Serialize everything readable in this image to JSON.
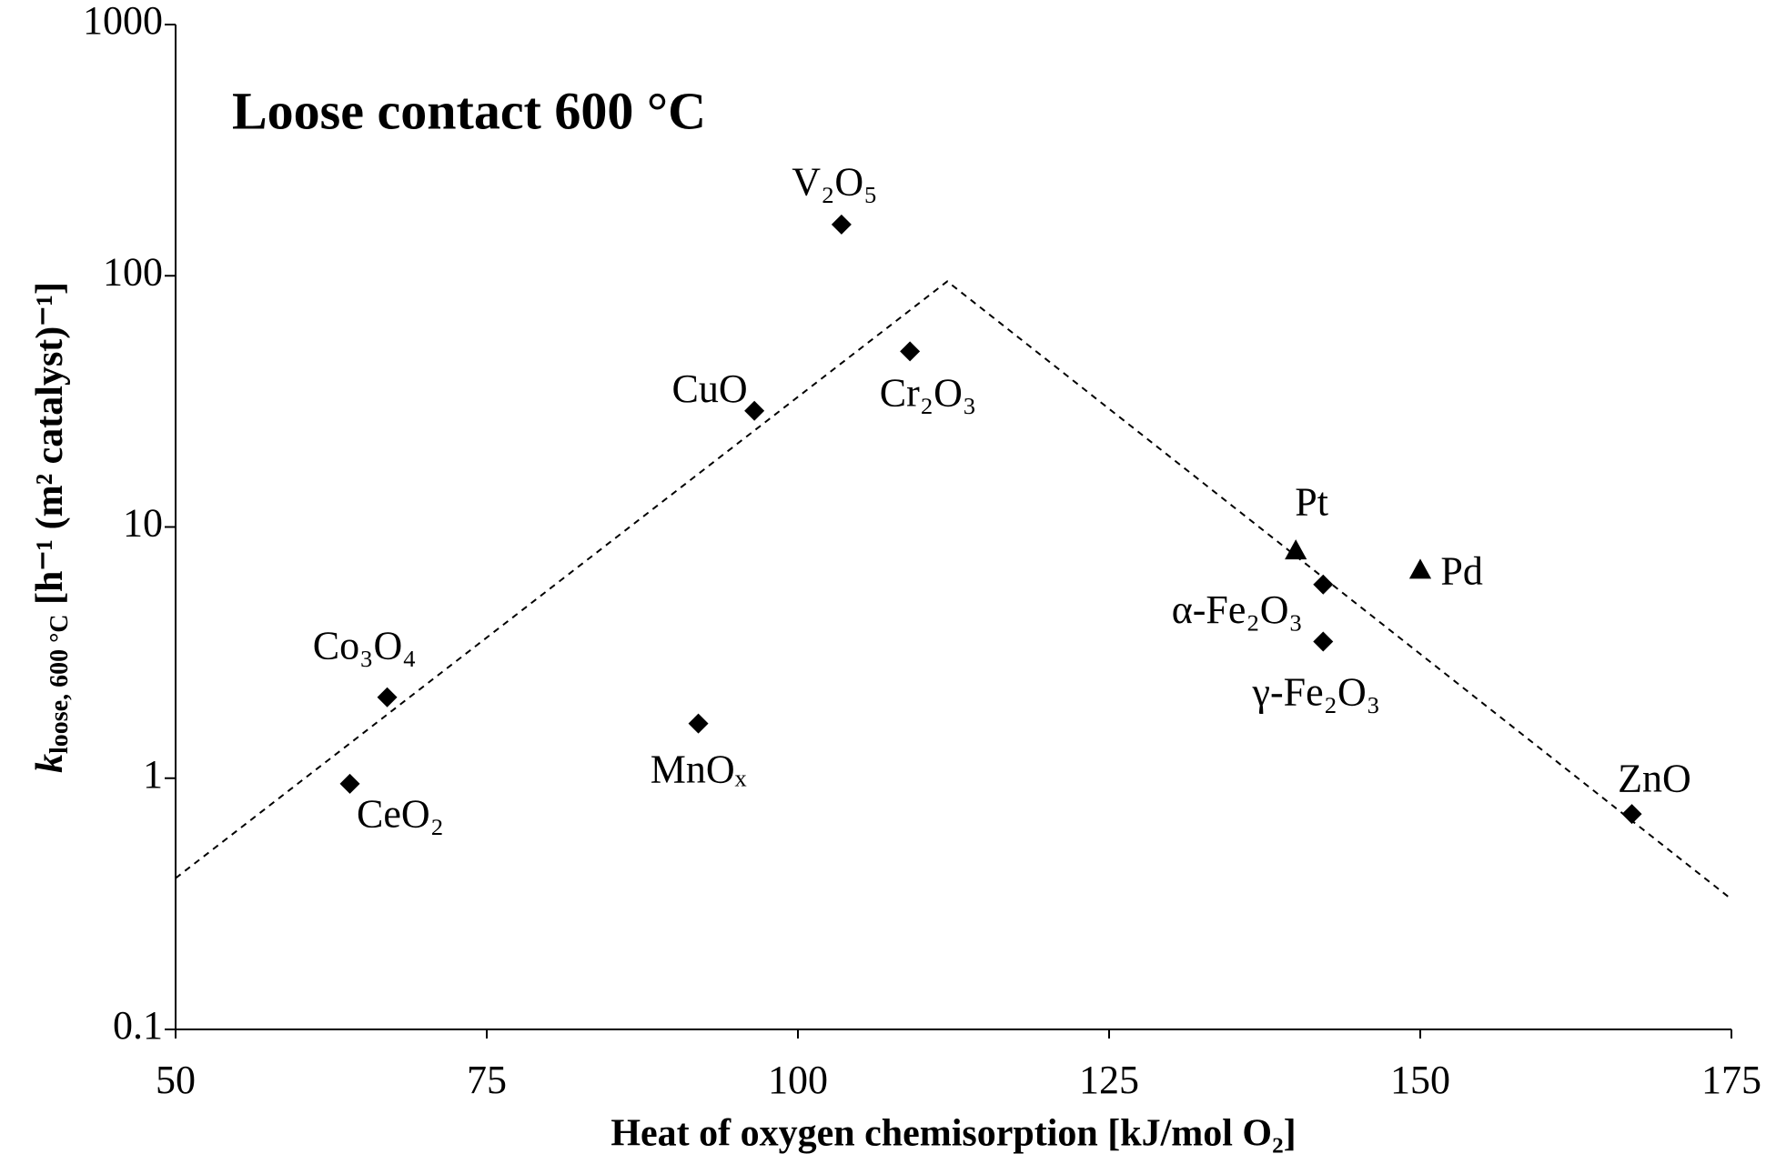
{
  "chart_data": {
    "type": "scatter",
    "title": "Loose contact 600 °C",
    "x_label": "Heat of oxygen chemisorption [kJ/mol O₂]",
    "y_label": {
      "symbol": "k",
      "subscript": "loose, 600 °C",
      "unit": " [h⁻¹ (m² catalyst)⁻¹]"
    },
    "xlim": [
      50,
      175
    ],
    "xticks": [
      50,
      75,
      100,
      125,
      150,
      175
    ],
    "ylim": [
      0.1,
      1000
    ],
    "yticks": [
      0.1,
      1,
      10,
      100,
      1000
    ],
    "log_y": true,
    "series": [
      {
        "marker": "diamond",
        "color": "#000000",
        "x": [
          67,
          64,
          92,
          96.5,
          103.5,
          109,
          142.2,
          142.2,
          167
        ],
        "values": [
          2.1,
          0.95,
          1.65,
          29,
          160,
          50,
          5.9,
          3.5,
          0.72
        ],
        "labels": [
          "Co₃O₄",
          "CeO₂",
          "MnOₓ",
          "CuO",
          "V₂O₅",
          "Cr₂O₃",
          "α-Fe₂O₃",
          "γ-Fe₂O₃",
          "ZnO"
        ]
      },
      {
        "marker": "triangle",
        "color": "#000000",
        "x": [
          140,
          150
        ],
        "values": [
          8,
          6.7
        ],
        "labels": [
          "Pt",
          "Pd"
        ]
      }
    ],
    "trend_line": {
      "x": [
        50,
        112,
        175
      ],
      "values": [
        0.4,
        95,
        0.33
      ],
      "color": "#000000",
      "dashed": true
    }
  }
}
